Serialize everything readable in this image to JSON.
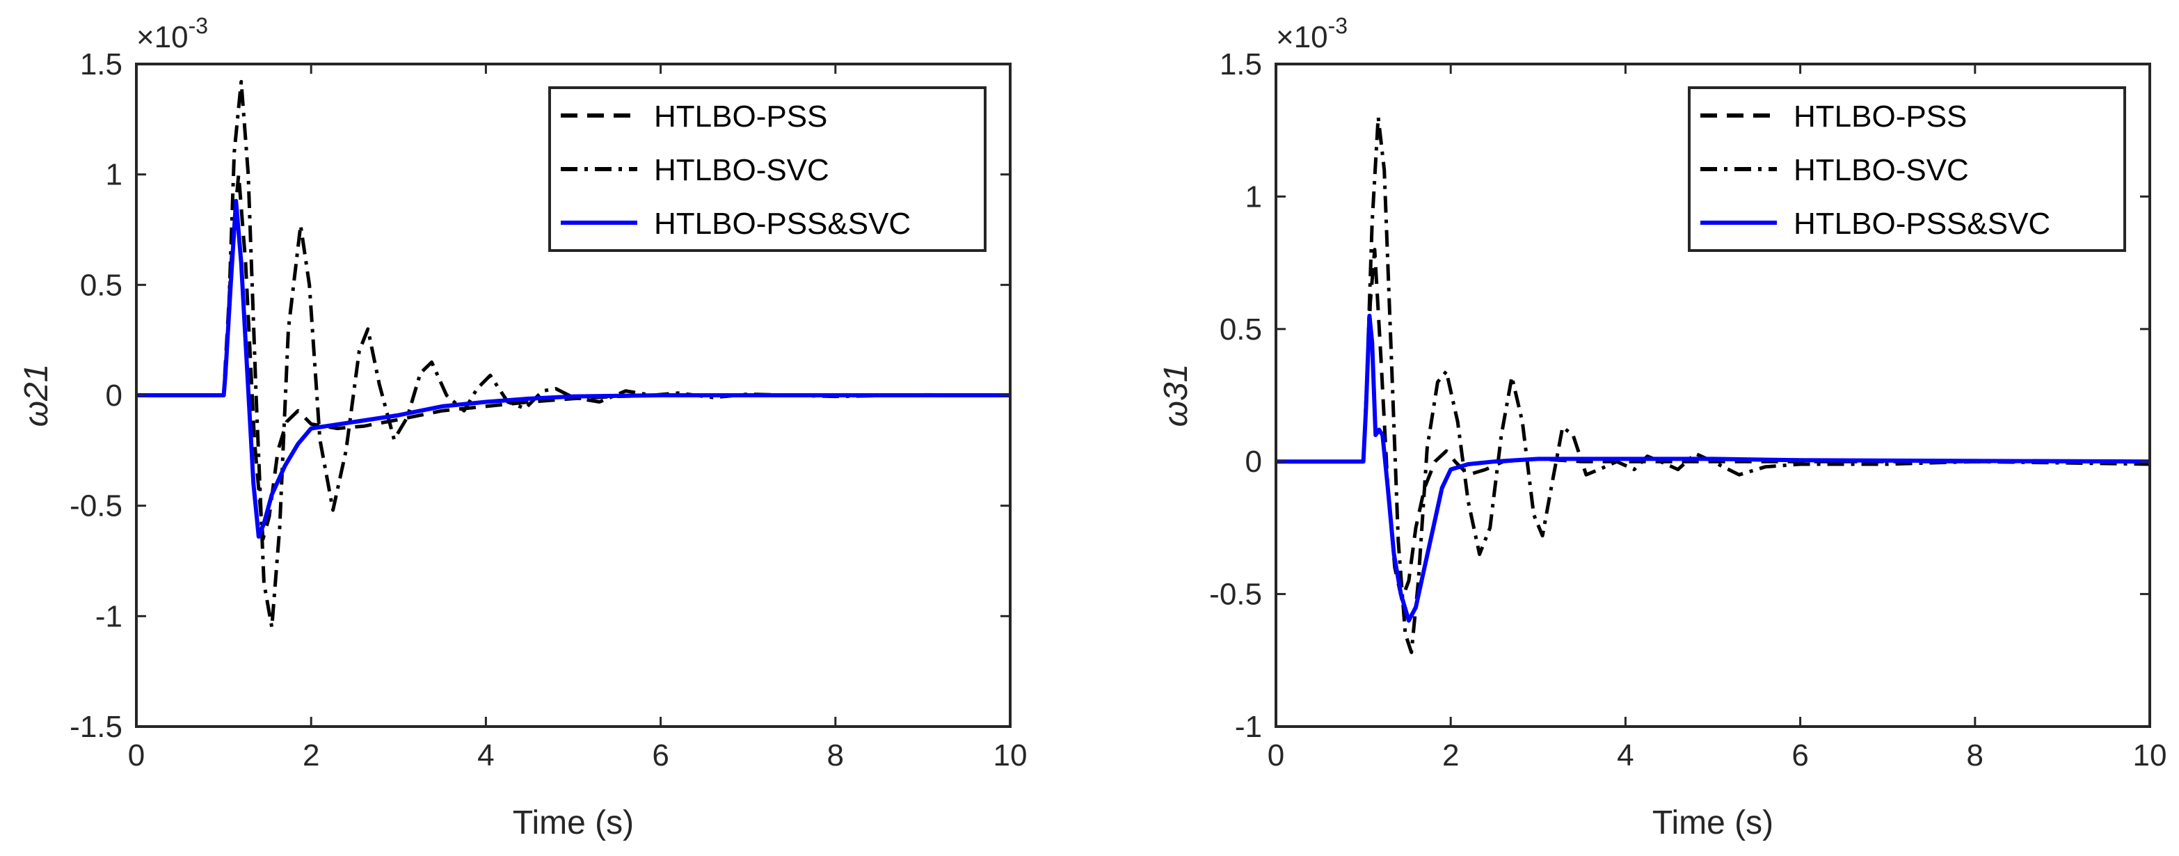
{
  "chart_data": [
    {
      "type": "line",
      "panel": "left",
      "xlabel": "Time (s)",
      "ylabel": "ω21",
      "exponent_label": "×10",
      "exponent_power": "-3",
      "xlim": [
        0,
        10
      ],
      "ylim": [
        -1.5,
        1.5
      ],
      "xticks": [
        0,
        2,
        4,
        6,
        8,
        10
      ],
      "yticks": [
        -1.5,
        -1,
        -0.5,
        0,
        0.5,
        1,
        1.5
      ],
      "grid": false,
      "legend_position": "top-right",
      "series": [
        {
          "name": "HTLBO-PSS",
          "style": "dashed",
          "color": "#000000",
          "points": [
            [
              0,
              0
            ],
            [
              1.0,
              0
            ],
            [
              1.02,
              0.15
            ],
            [
              1.1,
              0.7
            ],
            [
              1.17,
              1.0
            ],
            [
              1.25,
              0.6
            ],
            [
              1.35,
              -0.2
            ],
            [
              1.45,
              -0.65
            ],
            [
              1.52,
              -0.55
            ],
            [
              1.62,
              -0.25
            ],
            [
              1.72,
              -0.12
            ],
            [
              1.85,
              -0.07
            ],
            [
              2.0,
              -0.13
            ],
            [
              2.3,
              -0.15
            ],
            [
              2.6,
              -0.14
            ],
            [
              3.0,
              -0.11
            ],
            [
              3.5,
              -0.07
            ],
            [
              4.0,
              -0.05
            ],
            [
              4.5,
              -0.03
            ],
            [
              5.0,
              -0.015
            ],
            [
              5.5,
              -0.005
            ],
            [
              6.0,
              0
            ],
            [
              7.0,
              0
            ],
            [
              10.0,
              0
            ]
          ]
        },
        {
          "name": "HTLBO-SVC",
          "style": "dashdot",
          "color": "#000000",
          "points": [
            [
              0,
              0
            ],
            [
              1.0,
              0
            ],
            [
              1.05,
              0.3
            ],
            [
              1.12,
              1.1
            ],
            [
              1.2,
              1.42
            ],
            [
              1.28,
              1.0
            ],
            [
              1.37,
              0.0
            ],
            [
              1.46,
              -0.85
            ],
            [
              1.55,
              -1.05
            ],
            [
              1.64,
              -0.6
            ],
            [
              1.74,
              0.3
            ],
            [
              1.88,
              0.77
            ],
            [
              1.98,
              0.5
            ],
            [
              2.1,
              -0.2
            ],
            [
              2.25,
              -0.52
            ],
            [
              2.4,
              -0.25
            ],
            [
              2.55,
              0.2
            ],
            [
              2.65,
              0.3
            ],
            [
              2.78,
              0.05
            ],
            [
              2.95,
              -0.2
            ],
            [
              3.1,
              -0.1
            ],
            [
              3.25,
              0.1
            ],
            [
              3.38,
              0.15
            ],
            [
              3.55,
              0.0
            ],
            [
              3.75,
              -0.07
            ],
            [
              3.9,
              0.03
            ],
            [
              4.05,
              0.09
            ],
            [
              4.25,
              -0.03
            ],
            [
              4.45,
              -0.06
            ],
            [
              4.65,
              0.02
            ],
            [
              4.8,
              0.03
            ],
            [
              5.0,
              -0.01
            ],
            [
              5.3,
              -0.03
            ],
            [
              5.6,
              0.02
            ],
            [
              5.9,
              0.0
            ],
            [
              6.2,
              0.01
            ],
            [
              6.6,
              -0.01
            ],
            [
              7.0,
              0.005
            ],
            [
              8.0,
              -0.005
            ],
            [
              9.0,
              0.002
            ],
            [
              10.0,
              0
            ]
          ]
        },
        {
          "name": "HTLBO-PSS&SVC",
          "style": "solid",
          "color": "#0000ff",
          "points": [
            [
              0,
              0
            ],
            [
              1.0,
              0
            ],
            [
              1.02,
              0.1
            ],
            [
              1.08,
              0.5
            ],
            [
              1.14,
              0.88
            ],
            [
              1.2,
              0.6
            ],
            [
              1.27,
              0.1
            ],
            [
              1.34,
              -0.4
            ],
            [
              1.4,
              -0.64
            ],
            [
              1.46,
              -0.58
            ],
            [
              1.55,
              -0.45
            ],
            [
              1.7,
              -0.32
            ],
            [
              1.85,
              -0.22
            ],
            [
              2.0,
              -0.15
            ],
            [
              2.5,
              -0.12
            ],
            [
              3.0,
              -0.09
            ],
            [
              3.5,
              -0.05
            ],
            [
              4.0,
              -0.03
            ],
            [
              4.5,
              -0.015
            ],
            [
              5.0,
              -0.005
            ],
            [
              6.0,
              0
            ],
            [
              7.0,
              0
            ],
            [
              10.0,
              0
            ]
          ]
        }
      ]
    },
    {
      "type": "line",
      "panel": "right",
      "xlabel": "Time (s)",
      "ylabel": "ω31",
      "exponent_label": "×10",
      "exponent_power": "-3",
      "xlim": [
        0,
        10
      ],
      "ylim": [
        -1,
        1.5
      ],
      "xticks": [
        0,
        2,
        4,
        6,
        8,
        10
      ],
      "yticks": [
        -1,
        -0.5,
        0,
        0.5,
        1,
        1.5
      ],
      "grid": false,
      "legend_position": "top-right",
      "series": [
        {
          "name": "HTLBO-PSS",
          "style": "dashed",
          "color": "#000000",
          "points": [
            [
              0,
              0
            ],
            [
              1.0,
              0
            ],
            [
              1.03,
              0.2
            ],
            [
              1.08,
              0.6
            ],
            [
              1.13,
              0.8
            ],
            [
              1.2,
              0.4
            ],
            [
              1.28,
              -0.1
            ],
            [
              1.36,
              -0.4
            ],
            [
              1.44,
              -0.52
            ],
            [
              1.52,
              -0.45
            ],
            [
              1.6,
              -0.25
            ],
            [
              1.7,
              -0.1
            ],
            [
              1.82,
              0.0
            ],
            [
              1.95,
              0.04
            ],
            [
              2.05,
              0.0
            ],
            [
              2.2,
              -0.05
            ],
            [
              2.4,
              -0.03
            ],
            [
              2.6,
              0.0
            ],
            [
              3.0,
              0.01
            ],
            [
              3.5,
              0.0
            ],
            [
              4.0,
              0.0
            ],
            [
              5.0,
              0.0
            ],
            [
              10.0,
              0
            ]
          ]
        },
        {
          "name": "HTLBO-SVC",
          "style": "dashdot",
          "color": "#000000",
          "points": [
            [
              0,
              0
            ],
            [
              1.0,
              0
            ],
            [
              1.04,
              0.3
            ],
            [
              1.1,
              0.9
            ],
            [
              1.17,
              1.3
            ],
            [
              1.24,
              1.1
            ],
            [
              1.32,
              0.4
            ],
            [
              1.4,
              -0.3
            ],
            [
              1.48,
              -0.65
            ],
            [
              1.55,
              -0.72
            ],
            [
              1.63,
              -0.45
            ],
            [
              1.73,
              0.05
            ],
            [
              1.85,
              0.3
            ],
            [
              1.95,
              0.34
            ],
            [
              2.08,
              0.15
            ],
            [
              2.2,
              -0.15
            ],
            [
              2.33,
              -0.35
            ],
            [
              2.45,
              -0.25
            ],
            [
              2.58,
              0.1
            ],
            [
              2.7,
              0.32
            ],
            [
              2.82,
              0.15
            ],
            [
              2.95,
              -0.2
            ],
            [
              3.05,
              -0.28
            ],
            [
              3.15,
              -0.1
            ],
            [
              3.28,
              0.13
            ],
            [
              3.4,
              0.1
            ],
            [
              3.55,
              -0.05
            ],
            [
              3.7,
              -0.03
            ],
            [
              3.9,
              0.0
            ],
            [
              4.1,
              -0.03
            ],
            [
              4.25,
              0.02
            ],
            [
              4.4,
              0.0
            ],
            [
              4.6,
              -0.03
            ],
            [
              4.8,
              0.03
            ],
            [
              5.0,
              0.0
            ],
            [
              5.3,
              -0.05
            ],
            [
              5.6,
              -0.02
            ],
            [
              6.0,
              -0.01
            ],
            [
              7.0,
              -0.01
            ],
            [
              8.0,
              0.0
            ],
            [
              9.0,
              -0.005
            ],
            [
              10.0,
              -0.01
            ]
          ]
        },
        {
          "name": "HTLBO-PSS&SVC",
          "style": "solid",
          "color": "#0000ff",
          "points": [
            [
              0,
              0
            ],
            [
              1.0,
              0
            ],
            [
              1.03,
              0.2
            ],
            [
              1.07,
              0.55
            ],
            [
              1.1,
              0.45
            ],
            [
              1.14,
              0.1
            ],
            [
              1.18,
              0.12
            ],
            [
              1.22,
              0.1
            ],
            [
              1.28,
              -0.1
            ],
            [
              1.35,
              -0.35
            ],
            [
              1.43,
              -0.5
            ],
            [
              1.52,
              -0.6
            ],
            [
              1.6,
              -0.55
            ],
            [
              1.7,
              -0.4
            ],
            [
              1.8,
              -0.25
            ],
            [
              1.9,
              -0.1
            ],
            [
              2.0,
              -0.03
            ],
            [
              2.2,
              -0.01
            ],
            [
              2.5,
              0.0
            ],
            [
              3.0,
              0.01
            ],
            [
              4.0,
              0.01
            ],
            [
              5.0,
              0.01
            ],
            [
              6.0,
              0.005
            ],
            [
              10.0,
              0
            ]
          ]
        }
      ]
    }
  ]
}
